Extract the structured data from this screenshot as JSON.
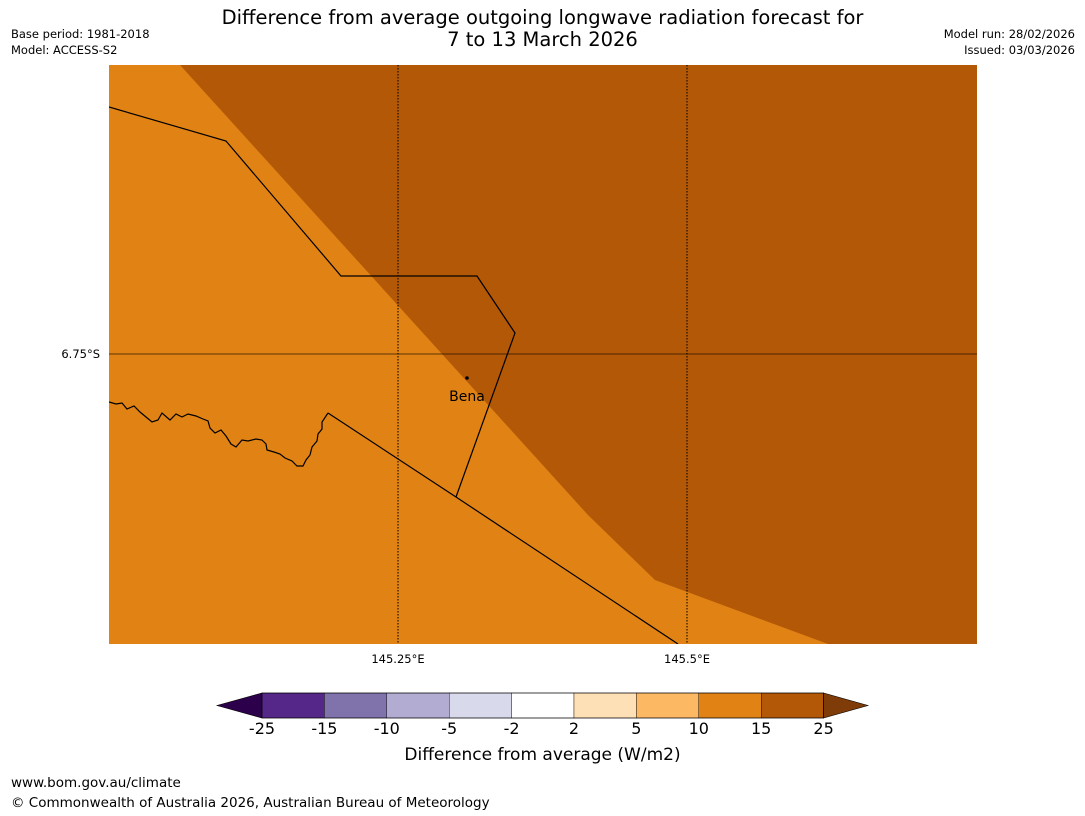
{
  "header": {
    "title_line1": "Difference from average outgoing longwave radiation forecast for",
    "title_line2": "7 to 13 March 2026",
    "base_period": "Base period: 1981-2018",
    "model": "Model: ACCESS-S2",
    "model_run": "Model run: 28/02/2026",
    "issued": "Issued: 03/03/2026"
  },
  "map": {
    "lat_label": "6.75°S",
    "lon_labels": [
      "145.25°E",
      "145.5°E"
    ],
    "place_label": "Bena",
    "colors": {
      "base": "#e08214",
      "high": "#b35806"
    }
  },
  "colorbar": {
    "ticks": [
      "-25",
      "-15",
      "-10",
      "-5",
      "-2",
      "2",
      "5",
      "10",
      "15",
      "25"
    ],
    "colors": [
      "#2d004b",
      "#542788",
      "#8073ac",
      "#b2abd2",
      "#d8daeb",
      "#ffffff",
      "#fee0b6",
      "#fdb863",
      "#e08214",
      "#b35806",
      "#7f3b08"
    ],
    "label": "Difference from average (W/m2)"
  },
  "footer": {
    "url": "www.bom.gov.au/climate",
    "copyright": "© Commonwealth of Australia 2026, Australian Bureau of Meteorology"
  }
}
